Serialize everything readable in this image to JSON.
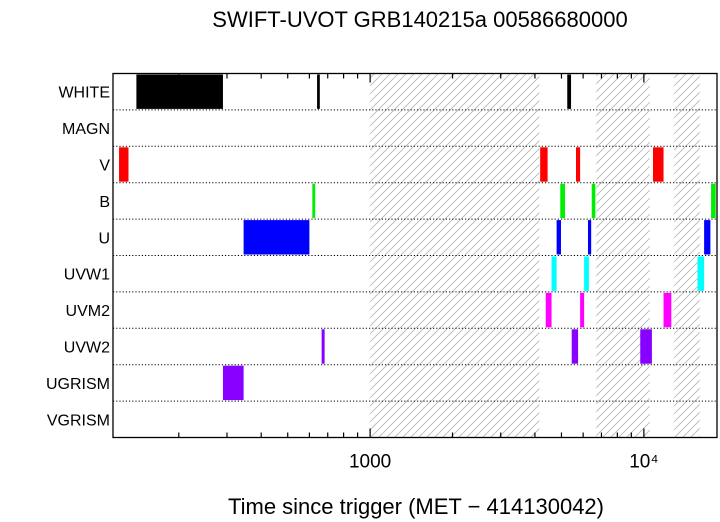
{
  "chart_data": {
    "type": "timeline",
    "title": "SWIFT-UVOT GRB140215a 00586680000",
    "xlabel": "Time since trigger (MET − 414130042)",
    "xscale": "log",
    "xlim": [
      115,
      18500
    ],
    "ticks": [
      {
        "value": 1000,
        "label": "1000"
      },
      {
        "value": 10000,
        "label": "10⁴"
      }
    ],
    "rows": [
      "WHITE",
      "MAGN",
      "V",
      "B",
      "U",
      "UVW1",
      "UVM2",
      "UVW2",
      "UGRISM",
      "VGRISM"
    ],
    "gaps": [
      [
        1000,
        4150
      ],
      [
        6700,
        10500
      ],
      [
        12900,
        16000
      ]
    ],
    "colors": {
      "WHITE": "#000000",
      "MAGN": "#000000",
      "V": "#ff0000",
      "B": "#00ee00",
      "U": "#0000ff",
      "UVW1": "#00ffff",
      "UVM2": "#ff00ff",
      "UVW2": "#8800ff",
      "UGRISM": "#8800ff",
      "VGRISM": "#8800ff"
    },
    "exposures": [
      {
        "filter": "WHITE",
        "start": 140,
        "end": 290
      },
      {
        "filter": "WHITE",
        "start": 640,
        "end": 655
      },
      {
        "filter": "WHITE",
        "start": 5250,
        "end": 5420
      },
      {
        "filter": "V",
        "start": 121,
        "end": 131
      },
      {
        "filter": "V",
        "start": 4180,
        "end": 4450
      },
      {
        "filter": "V",
        "start": 5650,
        "end": 5850
      },
      {
        "filter": "V",
        "start": 10800,
        "end": 11800
      },
      {
        "filter": "B",
        "start": 615,
        "end": 630
      },
      {
        "filter": "B",
        "start": 4950,
        "end": 5150
      },
      {
        "filter": "B",
        "start": 6450,
        "end": 6650
      },
      {
        "filter": "B",
        "start": 17600,
        "end": 18300
      },
      {
        "filter": "U",
        "start": 345,
        "end": 600
      },
      {
        "filter": "U",
        "start": 4800,
        "end": 4980
      },
      {
        "filter": "U",
        "start": 6250,
        "end": 6420
      },
      {
        "filter": "U",
        "start": 16600,
        "end": 17500
      },
      {
        "filter": "UVW1",
        "start": 4600,
        "end": 4800
      },
      {
        "filter": "UVW1",
        "start": 6050,
        "end": 6300
      },
      {
        "filter": "UVW1",
        "start": 15700,
        "end": 16600
      },
      {
        "filter": "UVM2",
        "start": 4380,
        "end": 4600
      },
      {
        "filter": "UVM2",
        "start": 5850,
        "end": 6050
      },
      {
        "filter": "UVM2",
        "start": 11800,
        "end": 12600
      },
      {
        "filter": "UVW2",
        "start": 665,
        "end": 682
      },
      {
        "filter": "UVW2",
        "start": 5450,
        "end": 5750
      },
      {
        "filter": "UVW2",
        "start": 9700,
        "end": 10700
      },
      {
        "filter": "UGRISM",
        "start": 290,
        "end": 345
      }
    ],
    "grid": "dotted row separators"
  }
}
